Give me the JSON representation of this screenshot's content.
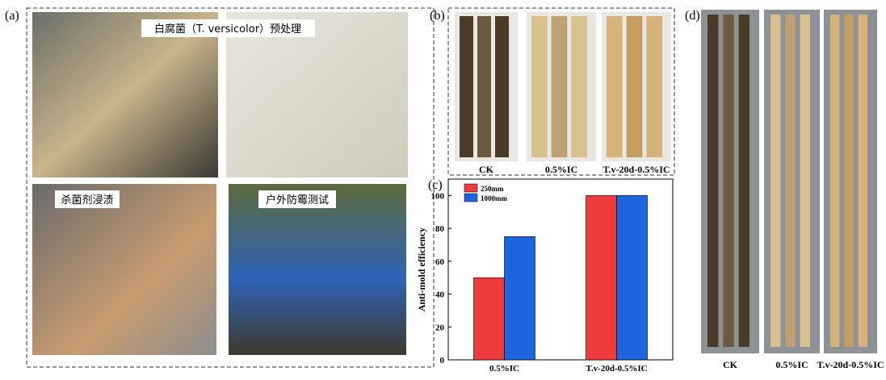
{
  "panel_a": {
    "label": "(a)",
    "captions": [
      "白腐菌（T. versicolor）预处理",
      "杀菌剂浸渍",
      "户外防霉测试"
    ]
  },
  "panel_b": {
    "label": "(b)",
    "samples": [
      "CK",
      "0.5%IC",
      "T.v-20d-0.5%IC"
    ]
  },
  "panel_d": {
    "label": "(d)",
    "samples": [
      "CK",
      "0.5%IC",
      "T.v-20d-0.5%IC"
    ]
  },
  "chart_data": {
    "type": "bar",
    "label": "(c)",
    "ylabel": "Anti-mold efficiency",
    "categories": [
      "0.5%IC",
      "T.v-20d-0.5%IC"
    ],
    "series": [
      {
        "name": "250mm",
        "color": "#ee3b3b",
        "values": [
          50,
          100
        ]
      },
      {
        "name": "1000mm",
        "color": "#1e63e0",
        "values": [
          75,
          100
        ]
      }
    ],
    "ylim": [
      0,
      110
    ],
    "yticks": [
      0,
      20,
      40,
      60,
      80,
      100
    ],
    "legend": "upper left"
  }
}
